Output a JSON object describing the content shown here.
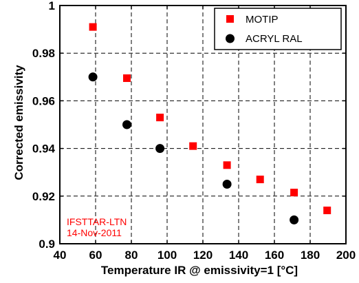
{
  "chart_data": {
    "type": "scatter",
    "xlabel": "Temperature IR @ emissivity=1 [°C]",
    "ylabel": "Corrected emissivity",
    "xlim": [
      40,
      200
    ],
    "ylim": [
      0.9,
      1.0
    ],
    "xticks": [
      40,
      60,
      80,
      100,
      120,
      140,
      160,
      180,
      200
    ],
    "yticks": [
      0.9,
      0.92,
      0.94,
      0.96,
      0.98,
      1
    ],
    "xtick_labels": [
      "40",
      "60",
      "80",
      "100",
      "120",
      "140",
      "160",
      "180",
      "200"
    ],
    "ytick_labels": [
      "0.9",
      "0.92",
      "0.94",
      "0.96",
      "0.98",
      "1"
    ],
    "grid": true,
    "legend_position": "top-right",
    "series": [
      {
        "name": "MOTIP",
        "marker": "square",
        "color": "#ff0000",
        "points": [
          {
            "x": 58.5,
            "y": 0.991
          },
          {
            "x": 77.5,
            "y": 0.9695
          },
          {
            "x": 96.0,
            "y": 0.953
          },
          {
            "x": 114.5,
            "y": 0.941
          },
          {
            "x": 133.5,
            "y": 0.933
          },
          {
            "x": 152.0,
            "y": 0.927
          },
          {
            "x": 171.0,
            "y": 0.9215
          },
          {
            "x": 189.5,
            "y": 0.914
          }
        ]
      },
      {
        "name": "ACRYL RAL",
        "marker": "circle",
        "color": "#000000",
        "points": [
          {
            "x": 58.5,
            "y": 0.97
          },
          {
            "x": 77.5,
            "y": 0.95
          },
          {
            "x": 96.0,
            "y": 0.94
          },
          {
            "x": 133.5,
            "y": 0.925
          },
          {
            "x": 171.0,
            "y": 0.91
          }
        ]
      }
    ],
    "annotations": [
      {
        "text": "IFSTTAR-LTN",
        "color": "#ff0000"
      },
      {
        "text": "14-Nov-2011",
        "color": "#ff0000"
      }
    ]
  }
}
